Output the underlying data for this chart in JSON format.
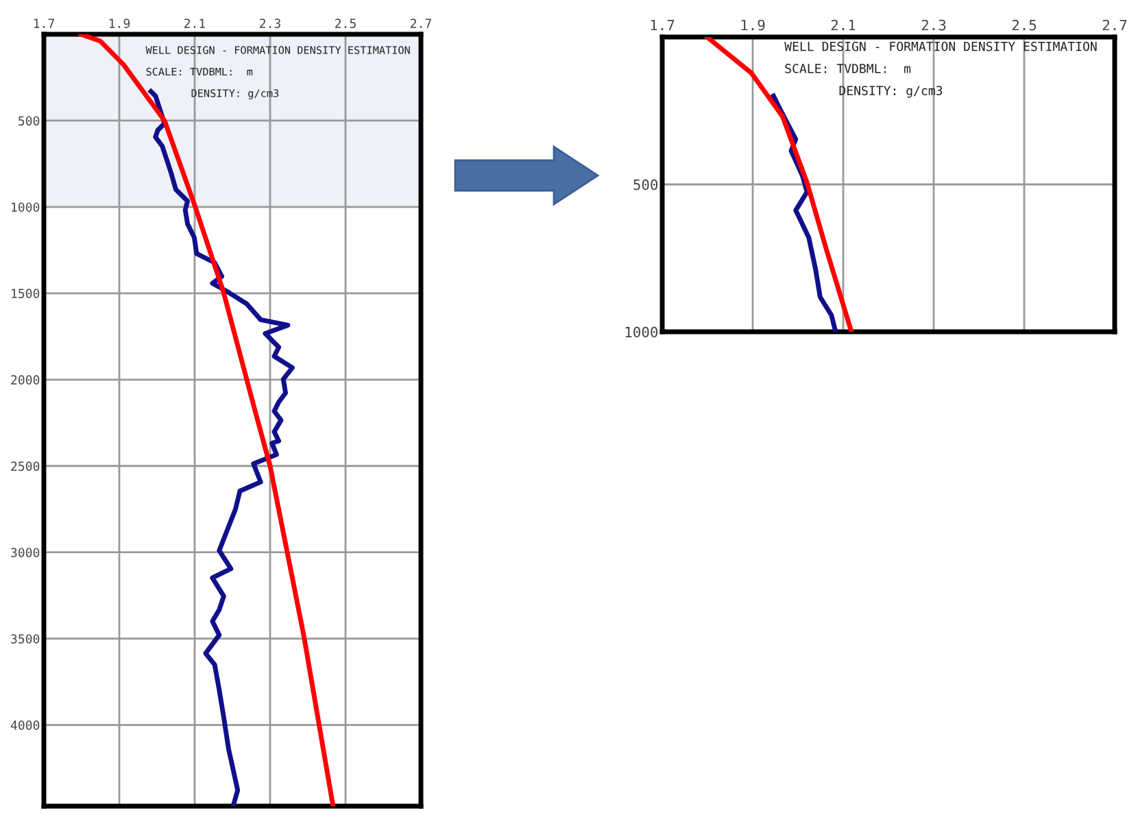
{
  "chart_data": [
    {
      "type": "line",
      "xlim": [
        1.7,
        2.7
      ],
      "ylim": [
        4470,
        0
      ],
      "xticks": [
        1.7,
        1.9,
        2.1,
        2.3,
        2.5,
        2.7
      ],
      "yticks": [
        500,
        1000,
        1500,
        2000,
        2500,
        3000,
        3500,
        4000
      ],
      "grid": true,
      "annotations": [
        "WELL DESIGN - FORMATION DENSITY ESTIMATION",
        "SCALE: TVDBML:  m",
        "DENSITY: g/cm3"
      ],
      "bands": [
        {
          "axis": "y",
          "from": 0,
          "to": 1000,
          "color": "#eef1f7"
        }
      ],
      "series": [
        {
          "color": "#10108c",
          "x": [
            1.984,
            1.996,
            2.02,
            2.002,
            1.996,
            2.014,
            2.038,
            2.05,
            2.081,
            2.075,
            2.081,
            2.099,
            2.105,
            2.153,
            2.172,
            2.147,
            2.19,
            2.238,
            2.275,
            2.347,
            2.287,
            2.323,
            2.311,
            2.359,
            2.335,
            2.341,
            2.323,
            2.311,
            2.329,
            2.311,
            2.323,
            2.305,
            2.317,
            2.256,
            2.275,
            2.22,
            2.208,
            2.184,
            2.165,
            2.196,
            2.147,
            2.177,
            2.165,
            2.147,
            2.165,
            2.129,
            2.153,
            2.165,
            2.177,
            2.19,
            2.214,
            2.202
          ],
          "values": [
            331,
            357,
            516,
            556,
            595,
            648,
            807,
            899,
            966,
            1018,
            1098,
            1177,
            1270,
            1323,
            1402,
            1442,
            1495,
            1561,
            1653,
            1685,
            1733,
            1812,
            1865,
            1931,
            1997,
            2077,
            2130,
            2183,
            2235,
            2302,
            2355,
            2368,
            2434,
            2487,
            2593,
            2645,
            2751,
            2884,
            2990,
            3095,
            3148,
            3254,
            3333,
            3399,
            3479,
            3585,
            3651,
            3796,
            3955,
            4140,
            4378,
            4470
          ]
        },
        {
          "color": "#ff0000",
          "x": [
            1.798,
            1.85,
            1.911,
            2.02,
            2.1,
            2.176,
            2.26,
            2.3,
            2.39,
            2.467
          ],
          "values": [
            0,
            40,
            175,
            500,
            990,
            1490,
            2180,
            2500,
            3490,
            4470
          ]
        }
      ]
    },
    {
      "type": "line",
      "xlim": [
        1.7,
        2.7
      ],
      "ylim": [
        1000,
        0
      ],
      "xticks": [
        1.7,
        1.9,
        2.1,
        2.3,
        2.5,
        2.7
      ],
      "yticks": [
        500,
        1000
      ],
      "grid": true,
      "annotations": [
        "WELL DESIGN - FORMATION DENSITY ESTIMATION",
        "SCALE: TVDBML:  m",
        "DENSITY: g/cm3"
      ],
      "series": [
        {
          "color": "#10108c",
          "x": [
            1.946,
            1.961,
            1.995,
            1.985,
            2.01,
            2.02,
            1.995,
            2.005,
            2.024,
            2.039,
            2.049,
            2.074,
            2.083
          ],
          "values": [
            200,
            247,
            347,
            386,
            471,
            526,
            588,
            619,
            681,
            789,
            882,
            944,
            999
          ]
        },
        {
          "color": "#ff0000",
          "x": [
            1.799,
            1.897,
            1.966,
            2.02,
            2.064,
            2.118
          ],
          "values": [
            0,
            122,
            270,
            494,
            727,
            999
          ]
        }
      ]
    }
  ]
}
